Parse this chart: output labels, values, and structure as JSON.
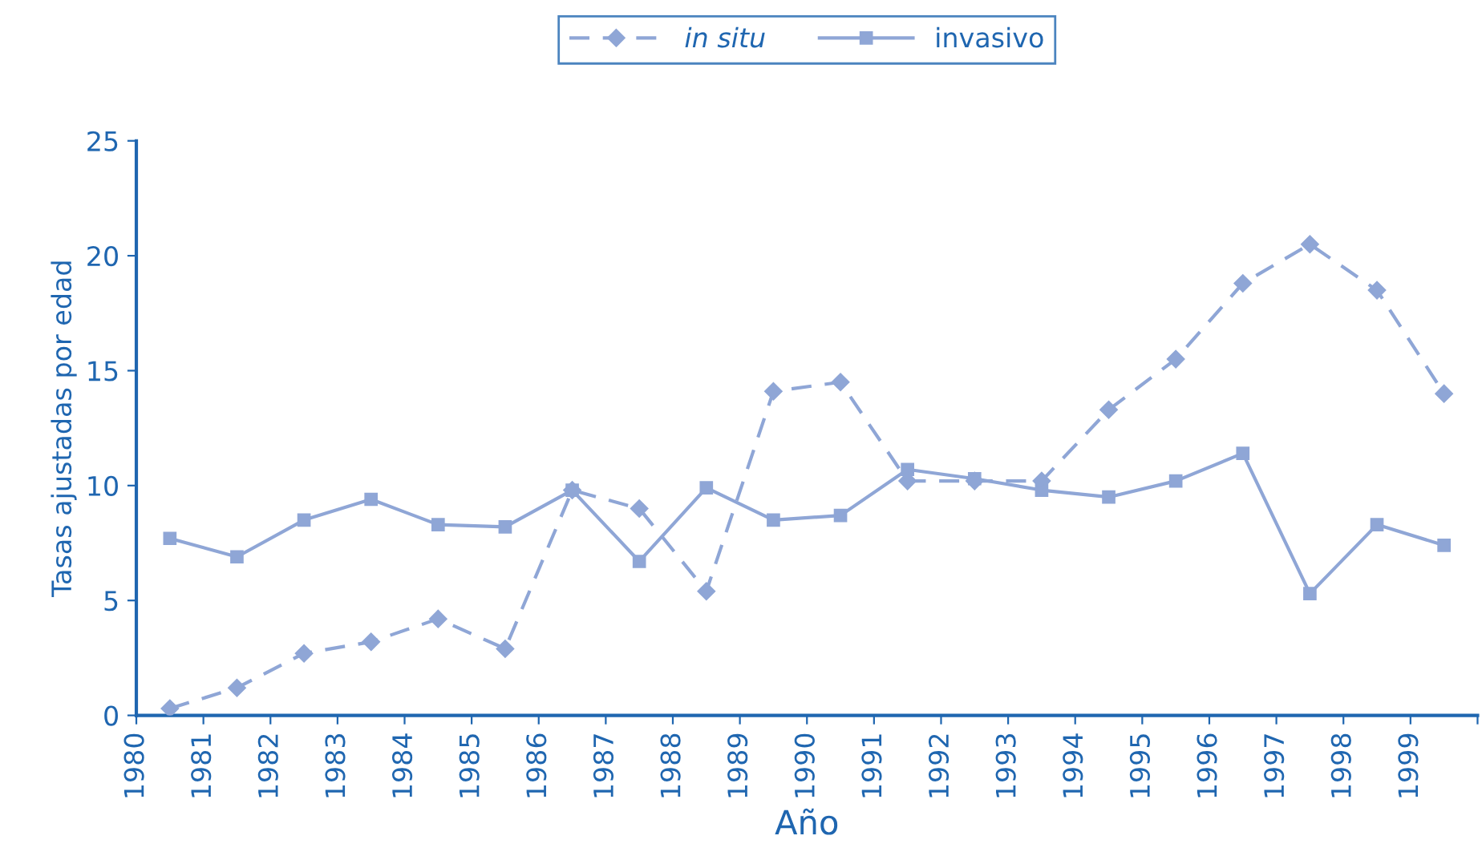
{
  "chart_data": {
    "type": "line",
    "xlabel": "Año",
    "ylabel": "Tasas ajustadas por edad",
    "x": [
      1980.5,
      1981.5,
      1982.5,
      1983.5,
      1984.5,
      1985.5,
      1986.5,
      1987.5,
      1988.5,
      1989.5,
      1990.5,
      1991.5,
      1992.5,
      1993.5,
      1994.5,
      1995.5,
      1996.5,
      1997.5,
      1998.5,
      1999.5
    ],
    "series": [
      {
        "name": "in situ",
        "color": "#8fa6d6",
        "marker": "diamond",
        "line_style": "dashed",
        "values": [
          0.3,
          1.2,
          2.7,
          3.2,
          4.2,
          2.9,
          9.8,
          9.0,
          5.4,
          14.1,
          14.5,
          10.2,
          10.2,
          10.2,
          13.3,
          15.5,
          18.8,
          20.5,
          18.5,
          14.0
        ]
      },
      {
        "name": "invasivo",
        "color": "#8fa6d6",
        "marker": "square",
        "line_style": "solid",
        "values": [
          7.7,
          6.9,
          8.5,
          9.4,
          8.3,
          8.2,
          9.8,
          6.7,
          9.9,
          8.5,
          8.7,
          10.7,
          10.3,
          9.8,
          9.5,
          10.2,
          11.4,
          5.3,
          8.3,
          7.4
        ]
      }
    ],
    "xlim": [
      1980,
      2000
    ],
    "xticks": [
      1980,
      1981,
      1982,
      1983,
      1984,
      1985,
      1986,
      1987,
      1988,
      1989,
      1990,
      1991,
      1992,
      1993,
      1994,
      1995,
      1996,
      1997,
      1998,
      1999,
      {
        "value": 2000,
        "label": null
      }
    ],
    "ylim": [
      0,
      25
    ],
    "yticks": [
      0,
      5,
      10,
      15,
      20,
      25
    ],
    "grid": false,
    "legend": "top"
  }
}
